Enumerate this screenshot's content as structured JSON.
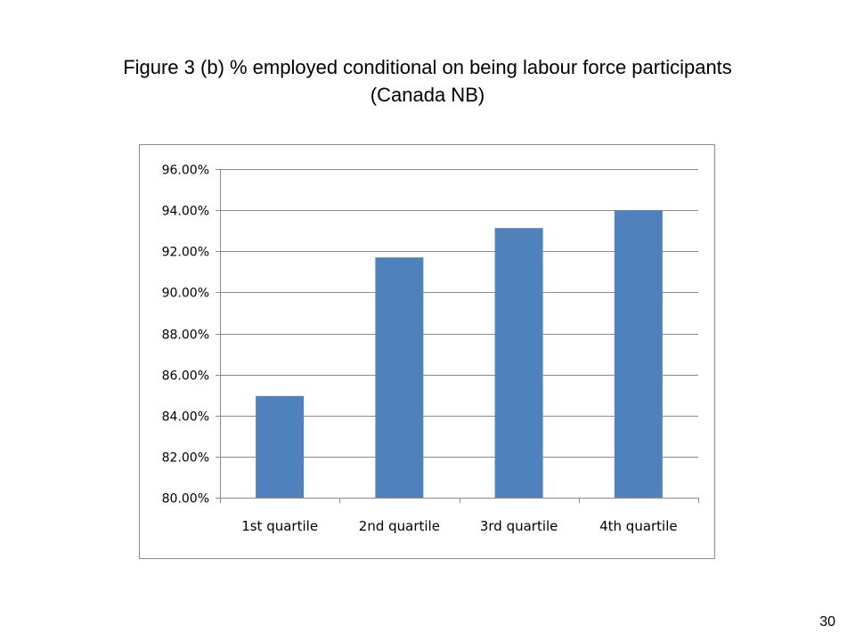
{
  "title": {
    "line1": "Figure 3 (b) % employed conditional on being labour force participants",
    "line2": "(Canada NB)"
  },
  "slide_number": "30",
  "chart_data": {
    "type": "bar",
    "categories": [
      "1st quartile",
      "2nd quartile",
      "3rd quartile",
      "4th quartile"
    ],
    "series": [
      {
        "values": [
          0.8495,
          0.917,
          0.9313,
          0.94
        ]
      }
    ],
    "ylim": [
      0.8,
      0.96
    ],
    "yticks": [
      "80.00%",
      "82.00%",
      "84.00%",
      "86.00%",
      "88.00%",
      "90.00%",
      "92.00%",
      "94.00%",
      "96.00%"
    ],
    "ytick_values": [
      0.8,
      0.82,
      0.84,
      0.86,
      0.88,
      0.9,
      0.92,
      0.94,
      0.96
    ],
    "xlabel": "",
    "ylabel": "",
    "grid": true,
    "legend": "none",
    "bar_color": "#4f81bd"
  }
}
